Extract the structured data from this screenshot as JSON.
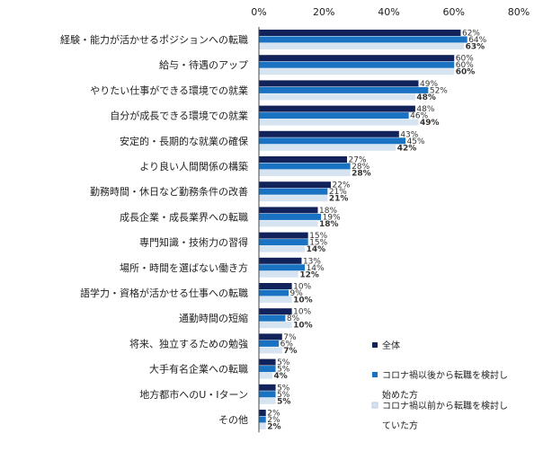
{
  "chart_data": {
    "type": "bar",
    "orientation": "horizontal",
    "title": "",
    "xlabel": "",
    "ylabel": "",
    "xlim": [
      0,
      80
    ],
    "x_ticks": [
      0,
      20,
      40,
      60,
      80
    ],
    "tick_labels": [
      "0%",
      "20%",
      "40%",
      "60%",
      "80%"
    ],
    "grid": false,
    "legend_position": "bottom-right",
    "categories": [
      "経験・能力が活かせるポジションへの転職",
      "給与・待遇のアップ",
      "やりたい仕事ができる環境での就業",
      "自分が成長できる環境での就業",
      "安定的・長期的な就業の確保",
      "より良い人間関係の構築",
      "勤務時間・休日など勤務条件の改善",
      "成長企業・成長業界への転職",
      "専門知識・技術力の習得",
      "場所・時間を選ばない働き方",
      "語学力・資格が活かせる仕事への転職",
      "通勤時間の短縮",
      "将来、独立するための勉強",
      "大手有名企業への転職",
      "地方都市へのU・Iターン",
      "その他"
    ],
    "series": [
      {
        "name": "全体",
        "color": "#12235c",
        "values": [
          62,
          60,
          49,
          48,
          43,
          27,
          22,
          18,
          15,
          13,
          10,
          10,
          7,
          5,
          5,
          2
        ],
        "labels": [
          "62%",
          "60%",
          "49%",
          "48%",
          "43%",
          "27%",
          "22%",
          "18%",
          "15%",
          "13%",
          "10%",
          "10%",
          "7%",
          "5%",
          "5%",
          "2%"
        ]
      },
      {
        "name": "コロナ禍以後から転職を検討し始めた方",
        "color": "#1a73c2",
        "values": [
          64,
          60,
          52,
          46,
          45,
          28,
          21,
          19,
          15,
          14,
          9,
          8,
          6,
          5,
          5,
          2
        ],
        "labels": [
          "64%",
          "60%",
          "52%",
          "46%",
          "45%",
          "28%",
          "21%",
          "19%",
          "15%",
          "14%",
          "9%",
          "8%",
          "6%",
          "5%",
          "5%",
          "2%"
        ]
      },
      {
        "name": "コロナ禍以前から転職を検討していた方",
        "color": "#d6e4f2",
        "values": [
          63,
          60,
          48,
          49,
          42,
          28,
          21,
          18,
          14,
          12,
          10,
          10,
          7,
          4,
          5,
          2
        ],
        "labels": [
          "63%",
          "60%",
          "48%",
          "49%",
          "42%",
          "28%",
          "21%",
          "18%",
          "14%",
          "12%",
          "10%",
          "10%",
          "7%",
          "4%",
          "5%",
          "2%"
        ]
      }
    ],
    "legend_lines": [
      [
        "全体"
      ],
      [
        "コロナ禍以後から転職を検討し",
        "始めた方"
      ],
      [
        "コロナ禍以前から転職を検討し",
        "ていた方"
      ]
    ]
  }
}
